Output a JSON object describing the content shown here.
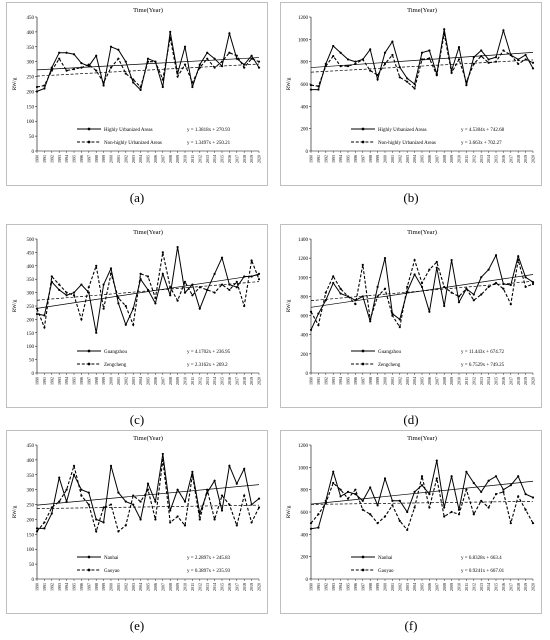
{
  "chart_data": [
    {
      "type": "line",
      "caption": "(a)",
      "title": "Time(Year)",
      "ylabel": "RW/g",
      "x_start": 1990,
      "x_end": 2020,
      "ylim": [
        0,
        450
      ],
      "ytick_step": 50,
      "series": [
        {
          "name": "Highly Urbanized Areas",
          "style": "solid",
          "values": [
            200,
            210,
            280,
            330,
            330,
            325,
            295,
            285,
            320,
            220,
            350,
            340,
            300,
            230,
            205,
            310,
            300,
            215,
            400,
            260,
            350,
            215,
            290,
            330,
            310,
            285,
            395,
            310,
            290,
            320,
            280
          ]
        },
        {
          "name": "Non-highly Urbanized Areas",
          "style": "dashed",
          "values": [
            215,
            220,
            270,
            310,
            270,
            275,
            280,
            290,
            270,
            230,
            280,
            310,
            260,
            240,
            215,
            300,
            300,
            240,
            380,
            250,
            290,
            230,
            280,
            310,
            280,
            300,
            330,
            320,
            280,
            310,
            300
          ]
        }
      ],
      "fits": [
        {
          "series": 0,
          "label": "y = 1.3818x + 270.93",
          "slope": 1.3818,
          "intercept": 270.93
        },
        {
          "series": 1,
          "label": "y = 1.3497x + 250.21",
          "slope": 1.3497,
          "intercept": 250.21
        }
      ]
    },
    {
      "type": "line",
      "caption": "(b)",
      "title": "Time(Year)",
      "ylabel": "RW/g",
      "x_start": 1990,
      "x_end": 2020,
      "ylim": [
        0,
        1200
      ],
      "ytick_step": 200,
      "series": [
        {
          "name": "Highly Urbanized Areas",
          "style": "solid",
          "values": [
            550,
            550,
            780,
            940,
            880,
            820,
            800,
            820,
            910,
            640,
            880,
            980,
            750,
            650,
            600,
            880,
            900,
            690,
            1090,
            720,
            930,
            590,
            840,
            900,
            820,
            840,
            1080,
            860,
            820,
            860,
            740
          ]
        },
        {
          "name": "Non-highly Urbanized Areas",
          "style": "dashed",
          "values": [
            590,
            580,
            760,
            850,
            760,
            760,
            780,
            820,
            720,
            680,
            780,
            860,
            660,
            620,
            560,
            820,
            830,
            680,
            1050,
            700,
            820,
            620,
            780,
            850,
            790,
            800,
            900,
            860,
            780,
            820,
            790
          ]
        }
      ],
      "fits": [
        {
          "series": 0,
          "label": "y = 4.5304x + 742.68",
          "slope": 4.5304,
          "intercept": 742.68
        },
        {
          "series": 1,
          "label": "y = 3.663x + 702.27",
          "slope": 3.663,
          "intercept": 702.27
        }
      ]
    },
    {
      "type": "line",
      "caption": "(c)",
      "title": "Time(Year)",
      "ylabel": "RW/g",
      "x_start": 1990,
      "x_end": 2020,
      "ylim": [
        0,
        500
      ],
      "ytick_step": 50,
      "series": [
        {
          "name": "Guangzhou",
          "style": "solid",
          "values": [
            220,
            215,
            340,
            310,
            290,
            300,
            330,
            300,
            150,
            330,
            390,
            260,
            180,
            240,
            350,
            310,
            260,
            370,
            290,
            470,
            300,
            330,
            240,
            310,
            370,
            430,
            330,
            320,
            360,
            360,
            370
          ]
        },
        {
          "name": "Zengcheng",
          "style": "dashed",
          "values": [
            240,
            170,
            360,
            330,
            300,
            290,
            200,
            320,
            400,
            240,
            370,
            280,
            250,
            180,
            370,
            360,
            280,
            450,
            320,
            270,
            340,
            290,
            320,
            310,
            300,
            330,
            310,
            340,
            250,
            420,
            350
          ]
        }
      ],
      "fits": [
        {
          "series": 0,
          "label": "y = 4.1702x + 236.95",
          "slope": 4.1702,
          "intercept": 236.95
        },
        {
          "series": 1,
          "label": "y = 2.3162x + 269.2",
          "slope": 2.3162,
          "intercept": 269.2
        }
      ]
    },
    {
      "type": "line",
      "caption": "(d)",
      "title": "Time(Year)",
      "ylabel": "RW/g",
      "x_start": 1990,
      "x_end": 2020,
      "ylim": [
        0,
        1400
      ],
      "ytick_step": 200,
      "series": [
        {
          "name": "Guangzhou",
          "style": "solid",
          "values": [
            450,
            620,
            760,
            940,
            830,
            800,
            760,
            800,
            540,
            900,
            1200,
            620,
            560,
            850,
            1030,
            900,
            640,
            1100,
            700,
            1180,
            740,
            880,
            820,
            1000,
            1080,
            1230,
            930,
            920,
            1220,
            1000,
            950
          ]
        },
        {
          "name": "Zengcheng",
          "style": "dashed",
          "values": [
            640,
            500,
            840,
            1010,
            880,
            800,
            720,
            1130,
            560,
            800,
            880,
            600,
            480,
            900,
            1180,
            940,
            1080,
            1160,
            900,
            840,
            800,
            880,
            760,
            820,
            900,
            940,
            880,
            720,
            1180,
            900,
            930
          ]
        }
      ],
      "fits": [
        {
          "series": 0,
          "label": "y = 11.443x + 674.72",
          "slope": 11.443,
          "intercept": 674.72
        },
        {
          "series": 1,
          "label": "y = 6.7529x + 749.25",
          "slope": 6.7529,
          "intercept": 749.25
        }
      ]
    },
    {
      "type": "line",
      "caption": "(e)",
      "title": "Time(Year)",
      "ylabel": "RW/g",
      "x_start": 1990,
      "x_end": 2020,
      "ylim": [
        0,
        450
      ],
      "ytick_step": 50,
      "series": [
        {
          "name": "Nanhai",
          "style": "solid",
          "values": [
            170,
            170,
            220,
            340,
            260,
            350,
            300,
            290,
            200,
            190,
            380,
            290,
            260,
            250,
            200,
            320,
            260,
            420,
            230,
            300,
            260,
            360,
            220,
            290,
            330,
            230,
            380,
            320,
            370,
            250,
            270
          ]
        },
        {
          "name": "Gaoyao",
          "style": "dashed",
          "values": [
            160,
            190,
            240,
            260,
            300,
            380,
            280,
            250,
            160,
            240,
            250,
            160,
            180,
            280,
            260,
            300,
            200,
            400,
            190,
            210,
            180,
            350,
            200,
            300,
            200,
            280,
            250,
            180,
            280,
            190,
            240
          ]
        }
      ],
      "fits": [
        {
          "series": 0,
          "label": "y = 2.2897x + 245.83",
          "slope": 2.2897,
          "intercept": 245.83
        },
        {
          "series": 1,
          "label": "y = 0.3897x + 235.93",
          "slope": 0.3897,
          "intercept": 235.93
        }
      ]
    },
    {
      "type": "line",
      "caption": "(f)",
      "title": "Time(Year)",
      "ylabel": "RW/g",
      "x_start": 1990,
      "x_end": 2020,
      "ylim": [
        0,
        1200
      ],
      "ytick_step": 200,
      "series": [
        {
          "name": "Nanhai",
          "style": "solid",
          "values": [
            450,
            460,
            700,
            960,
            740,
            780,
            760,
            700,
            820,
            660,
            900,
            700,
            700,
            600,
            780,
            840,
            760,
            1060,
            640,
            920,
            620,
            960,
            860,
            780,
            880,
            920,
            800,
            840,
            920,
            760,
            730
          ]
        },
        {
          "name": "Gaoyao",
          "style": "dashed",
          "values": [
            500,
            580,
            680,
            860,
            800,
            720,
            800,
            620,
            580,
            500,
            560,
            660,
            520,
            440,
            640,
            920,
            640,
            900,
            560,
            600,
            580,
            800,
            580,
            700,
            640,
            760,
            780,
            500,
            740,
            620,
            500
          ]
        }
      ],
      "fits": [
        {
          "series": 0,
          "label": "y = 6.8328x + 663.4",
          "slope": 6.8328,
          "intercept": 663.4
        },
        {
          "series": 1,
          "label": "y = 0.9241x + 667.01",
          "slope": 0.9241,
          "intercept": 667.01
        }
      ]
    }
  ]
}
